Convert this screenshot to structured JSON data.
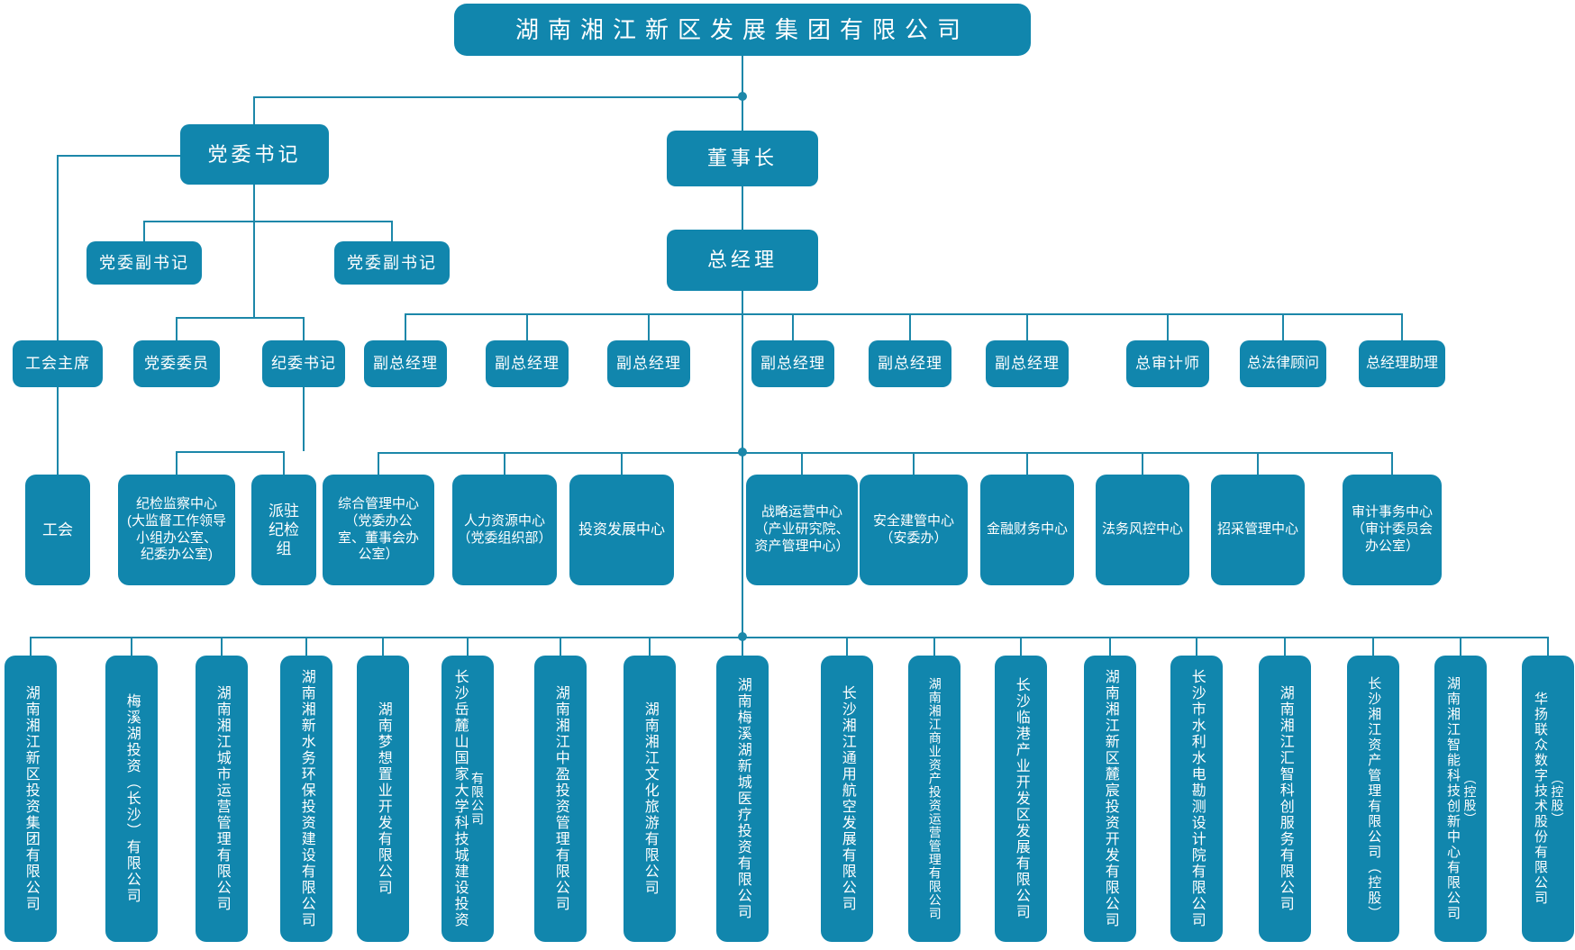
{
  "chart": {
    "root": {
      "label": "湖南湘江新区发展集团有限公司"
    },
    "level2": {
      "party_secretary": "党委书记",
      "chairman": "董事长",
      "general_manager": "总经理",
      "deputy_party_secretary_1": "党委副书记",
      "deputy_party_secretary_2": "党委副书记"
    },
    "row3": [
      "工会主席",
      "党委委员",
      "纪委书记",
      "副总经理",
      "副总经理",
      "副总经理",
      "副总经理",
      "副总经理",
      "副总经理",
      "总审计师",
      "总法律顾问",
      "总经理助理"
    ],
    "centers": [
      {
        "lines": [
          "工会"
        ]
      },
      {
        "lines": [
          "纪检监察中心",
          "(大监督工作领导",
          "小组办公室、",
          "纪委办公室)"
        ]
      },
      {
        "lines": [
          "派驻",
          "纪检",
          "组"
        ]
      },
      {
        "lines": [
          "综合管理中心",
          "（党委办公",
          "室、董事会办",
          "公室）"
        ]
      },
      {
        "lines": [
          "人力资源中心",
          "（党委组织部）"
        ]
      },
      {
        "lines": [
          "投资发展中心"
        ]
      },
      {
        "lines": [
          "战略运营中心",
          "（产业研究院、",
          "资产管理中心）"
        ]
      },
      {
        "lines": [
          "安全建管中心",
          "（安委办）"
        ]
      },
      {
        "lines": [
          "金融财务中心"
        ]
      },
      {
        "lines": [
          "法务风控中心"
        ]
      },
      {
        "lines": [
          "招采管理中心"
        ]
      },
      {
        "lines": [
          "审计事务中心",
          "（审计委员会",
          "办公室）"
        ]
      }
    ],
    "subsidiaries": [
      {
        "name": "湖南湘江新区投资集团有限公司"
      },
      {
        "name": "梅溪湖投资（长沙）有限公司"
      },
      {
        "name": "湖南湘江城市运营管理有限公司"
      },
      {
        "name": "湖南湘新水务环保投资建设有限公司"
      },
      {
        "name": "湖南梦想置业开发有限公司"
      },
      {
        "name": "长沙岳麓山国家大学科技城建设投资",
        "suffix": "有限公司"
      },
      {
        "name": "湖南湘江中盈投资管理有限公司"
      },
      {
        "name": "湖南湘江文化旅游有限公司"
      },
      {
        "name": "湖南梅溪湖新城医疗投资有限公司"
      },
      {
        "name": "长沙湘江通用航空发展有限公司"
      },
      {
        "name": "湖南湘江商业资产投资运营管理有限公司"
      },
      {
        "name": "长沙临港产业开发区发展有限公司"
      },
      {
        "name": "湖南湘江新区麓宸投资开发有限公司"
      },
      {
        "name": "长沙市水利水电勘测设计院有限公司"
      },
      {
        "name": "湖南湘江汇智科创服务有限公司"
      },
      {
        "name": "长沙湘江资产管理有限公司（控股）"
      },
      {
        "name": "湖南湘江智能科技创新中心有限公司",
        "suffix": "（控股）"
      },
      {
        "name": "华扬联众数字技术股份有限公司",
        "suffix": "（控股）"
      }
    ],
    "colors": {
      "box": "#1186ad",
      "line": "#1c87a9",
      "text": "#ffffff",
      "background": "#ffffff"
    }
  }
}
